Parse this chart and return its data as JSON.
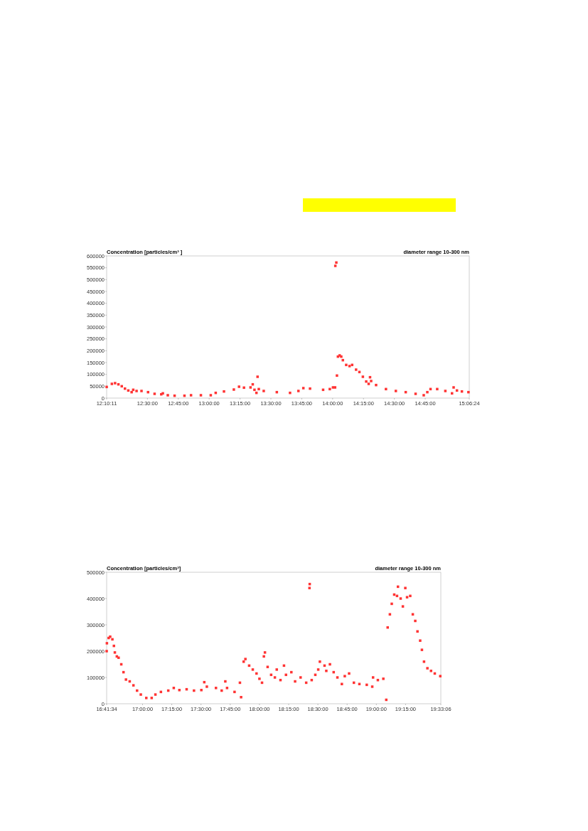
{
  "chart_data": [
    {
      "type": "scatter",
      "title": "diameter range 10-300 nm",
      "ylabel": "Concentration [particles/cm³ ]",
      "marker": "square",
      "grid": false,
      "xlim": [
        12.1697,
        15.1067
      ],
      "ylim": [
        0,
        600000
      ],
      "xticks": [
        {
          "value": 12.1697,
          "label": "12:10:11"
        },
        {
          "value": 12.5,
          "label": "12:30:00"
        },
        {
          "value": 12.75,
          "label": "12:45:00"
        },
        {
          "value": 13,
          "label": "13:00:00"
        },
        {
          "value": 13.25,
          "label": "13:15:00"
        },
        {
          "value": 13.5,
          "label": "13:30:00"
        },
        {
          "value": 13.75,
          "label": "13:45:00"
        },
        {
          "value": 14,
          "label": "14:00:00"
        },
        {
          "value": 14.25,
          "label": "14:15:00"
        },
        {
          "value": 14.5,
          "label": "14:30:00"
        },
        {
          "value": 14.75,
          "label": "14:45:00"
        },
        {
          "value": 15.1067,
          "label": "15:06:24"
        }
      ],
      "yticks": [
        0,
        50000,
        100000,
        150000,
        200000,
        250000,
        300000,
        350000,
        400000,
        450000,
        500000,
        550000,
        600000
      ],
      "series": [
        {
          "color": "#ff3333",
          "x": [
            12.17,
            12.212,
            12.238,
            12.265,
            12.292,
            12.318,
            12.345,
            12.372,
            12.385,
            12.412,
            12.452,
            12.505,
            12.558,
            12.612,
            12.625,
            12.665,
            12.72,
            12.8,
            12.853,
            12.933,
            13.013,
            13.053,
            13.12,
            13.2,
            13.242,
            13.282,
            13.335,
            13.353,
            13.367,
            13.383,
            13.392,
            13.402,
            13.442,
            13.548,
            13.655,
            13.723,
            13.763,
            13.817,
            13.923,
            13.977,
            14.003,
            14.02,
            14.022,
            14.03,
            14.035,
            14.043,
            14.057,
            14.07,
            14.083,
            14.11,
            14.137,
            14.158,
            14.19,
            14.217,
            14.245,
            14.272,
            14.292,
            14.303,
            14.312,
            14.352,
            14.432,
            14.512,
            14.592,
            14.672,
            14.738,
            14.767,
            14.793,
            14.847,
            14.913,
            14.967,
            14.98,
            15.007,
            15.047,
            15.1
          ],
          "values": [
            47000,
            60000,
            63000,
            58000,
            50000,
            40000,
            32000,
            25000,
            35000,
            30000,
            30000,
            25000,
            18000,
            16000,
            20000,
            12000,
            10000,
            10000,
            12000,
            12000,
            12000,
            22000,
            28000,
            36000,
            48000,
            44000,
            45000,
            58000,
            35000,
            22000,
            90000,
            38000,
            30000,
            25000,
            22000,
            30000,
            42000,
            40000,
            35000,
            38000,
            45000,
            45000,
            558000,
            572000,
            95000,
            175000,
            180000,
            175000,
            160000,
            140000,
            135000,
            140000,
            120000,
            110000,
            90000,
            70000,
            60000,
            88000,
            72000,
            55000,
            38000,
            30000,
            25000,
            18000,
            12000,
            25000,
            38000,
            38000,
            30000,
            20000,
            45000,
            32000,
            28000,
            25000
          ]
        }
      ]
    },
    {
      "type": "scatter",
      "title": "diameter range 10-300 nm",
      "ylabel": "Concentration [particles/cm³]",
      "marker": "square",
      "grid": false,
      "xlim": [
        16.6928,
        19.5517
      ],
      "ylim": [
        0,
        500000
      ],
      "xticks": [
        {
          "value": 16.6928,
          "label": "16:41:34"
        },
        {
          "value": 17,
          "label": "17:00:00"
        },
        {
          "value": 17.25,
          "label": "17:15:00"
        },
        {
          "value": 17.5,
          "label": "17:30:00"
        },
        {
          "value": 17.75,
          "label": "17:45:00"
        },
        {
          "value": 18,
          "label": "18:00:00"
        },
        {
          "value": 18.25,
          "label": "18:15:00"
        },
        {
          "value": 18.5,
          "label": "18:30:00"
        },
        {
          "value": 18.75,
          "label": "18:45:00"
        },
        {
          "value": 19,
          "label": "19:00:00"
        },
        {
          "value": 19.25,
          "label": "19:15:00"
        },
        {
          "value": 19.5517,
          "label": "19:33:06"
        }
      ],
      "yticks": [
        0,
        100000,
        200000,
        300000,
        400000,
        500000
      ],
      "series": [
        {
          "color": "#ff3333",
          "x": [
            16.693,
            16.695,
            16.71,
            16.723,
            16.742,
            16.755,
            16.763,
            16.78,
            16.795,
            16.818,
            16.837,
            16.858,
            16.89,
            16.922,
            16.953,
            16.985,
            17.032,
            17.078,
            17.11,
            17.157,
            17.22,
            17.267,
            17.315,
            17.377,
            17.44,
            17.503,
            17.528,
            17.55,
            17.628,
            17.677,
            17.708,
            17.723,
            17.787,
            17.833,
            17.843,
            17.865,
            17.88,
            17.912,
            17.943,
            17.975,
            18.0,
            18.022,
            18.038,
            18.047,
            18.07,
            18.1,
            18.132,
            18.148,
            18.18,
            18.21,
            18.227,
            18.273,
            18.305,
            18.352,
            18.4,
            18.428,
            18.43,
            18.447,
            18.478,
            18.503,
            18.517,
            18.557,
            18.572,
            18.603,
            18.635,
            18.667,
            18.705,
            18.73,
            18.767,
            18.808,
            18.855,
            18.918,
            18.965,
            18.972,
            19.013,
            19.06,
            19.085,
            19.097,
            19.116,
            19.132,
            19.153,
            19.177,
            19.185,
            19.208,
            19.227,
            19.248,
            19.263,
            19.29,
            19.312,
            19.333,
            19.352,
            19.375,
            19.39,
            19.408,
            19.437,
            19.468,
            19.5,
            19.547
          ],
          "values": [
            200000,
            230000,
            250000,
            255000,
            245000,
            220000,
            195000,
            180000,
            175000,
            150000,
            120000,
            92000,
            85000,
            70000,
            50000,
            35000,
            22000,
            22000,
            35000,
            45000,
            50000,
            60000,
            52000,
            55000,
            50000,
            52000,
            82000,
            65000,
            60000,
            50000,
            85000,
            60000,
            45000,
            80000,
            25000,
            160000,
            170000,
            145000,
            130000,
            115000,
            95000,
            80000,
            180000,
            195000,
            140000,
            110000,
            100000,
            130000,
            90000,
            145000,
            110000,
            120000,
            85000,
            100000,
            80000,
            440000,
            455000,
            90000,
            110000,
            130000,
            160000,
            145000,
            125000,
            150000,
            120000,
            100000,
            75000,
            105000,
            115000,
            80000,
            75000,
            72000,
            65000,
            100000,
            90000,
            95000,
            15000,
            290000,
            340000,
            380000,
            415000,
            410000,
            445000,
            400000,
            370000,
            440000,
            405000,
            410000,
            340000,
            315000,
            275000,
            240000,
            205000,
            160000,
            135000,
            125000,
            115000,
            105000
          ]
        }
      ]
    }
  ]
}
